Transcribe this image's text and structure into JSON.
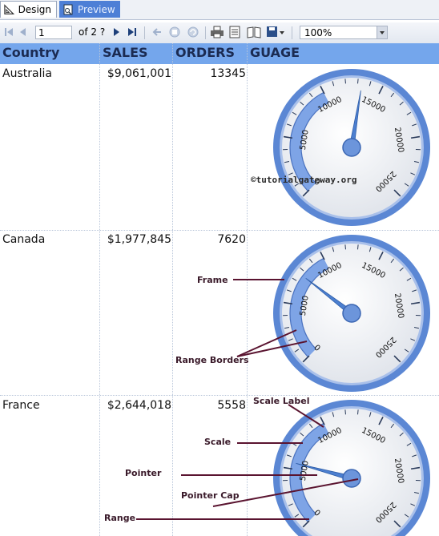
{
  "tabs": [
    {
      "label": "Design",
      "icon": "design-ruler-icon"
    },
    {
      "label": "Preview",
      "icon": "preview-report-icon"
    }
  ],
  "toolbar": {
    "page_value": "1",
    "page_of": "of 2 ?",
    "zoom": "100%",
    "icons": [
      "first-page-icon",
      "prev-page-icon",
      "next-page-icon",
      "last-page-icon",
      "back-icon",
      "stop-icon",
      "refresh-icon",
      "print-icon",
      "print-layout-icon",
      "page-setup-icon",
      "export-icon"
    ]
  },
  "table": {
    "headers": [
      "Country",
      "SALES",
      "ORDERS",
      "GUAGE"
    ],
    "rows": [
      {
        "country": "Australia",
        "sales": "$9,061,001",
        "orders": "13345",
        "pointer_value": 13345
      },
      {
        "country": "Canada",
        "sales": "$1,977,845",
        "orders": "7620",
        "pointer_value": 7620
      },
      {
        "country": "France",
        "sales": "$2,644,018",
        "orders": "5558",
        "pointer_value": 5558
      }
    ]
  },
  "gauge_scale": {
    "min": 0,
    "max": 25000,
    "labels": [
      "0",
      "5000",
      "10000",
      "15000",
      "20000",
      "25000"
    ],
    "colors": {
      "frame": "#5b87d4",
      "range": "#7ea4e6",
      "pointer": "#4c7fd0"
    }
  },
  "watermark": "©tutorialgateway.org",
  "annotations": {
    "frame": "Frame",
    "range_borders": "Range Borders",
    "scale_label": "Scale Label",
    "scale": "Scale",
    "pointer": "Pointer",
    "pointer_cap": "Pointer Cap",
    "range": "Range"
  }
}
